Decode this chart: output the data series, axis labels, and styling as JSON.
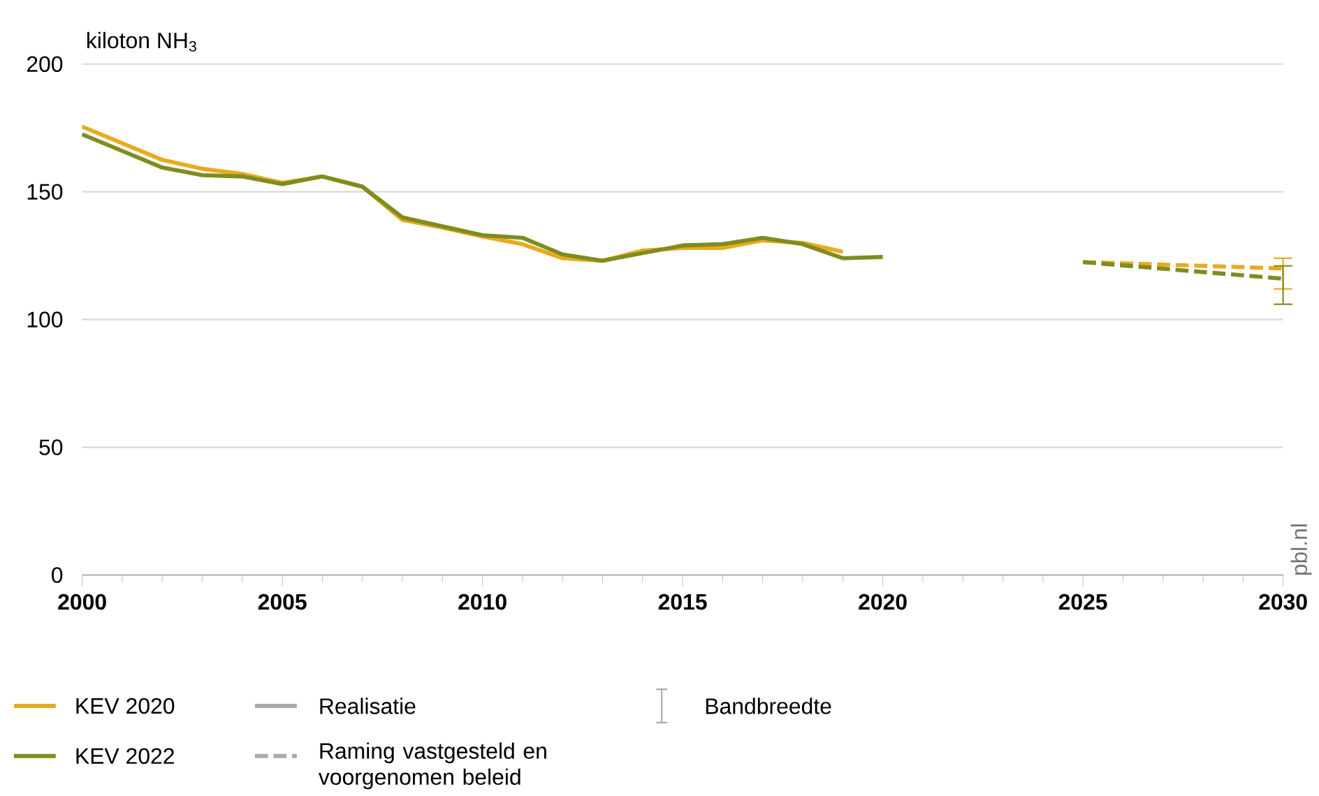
{
  "chart_data": {
    "type": "line",
    "ylabel": "kiloton NH$_{3}$",
    "xlim": [
      2000,
      2030
    ],
    "xticks": [
      2000,
      2005,
      2010,
      2015,
      2020,
      2025,
      2030
    ],
    "ylim": [
      0,
      200
    ],
    "yticks": [
      0,
      50,
      100,
      150,
      200
    ],
    "grid": "y",
    "legend": "bottom left",
    "series": [
      {
        "name": "KEV 2020",
        "color": "#e8aa1e",
        "line_style": "solid",
        "x": [
          2000,
          2001,
          2002,
          2003,
          2004,
          2005,
          2006,
          2007,
          2008,
          2009,
          2010,
          2011,
          2012,
          2013,
          2014,
          2015,
          2016,
          2017,
          2018,
          2019
        ],
        "values": [
          175.5,
          169,
          162.5,
          159,
          157,
          153.5,
          156,
          152,
          139,
          136,
          132.5,
          129.5,
          124,
          123,
          127,
          128,
          128,
          131,
          130,
          126.5
        ]
      },
      {
        "name": "KEV 2022",
        "color": "#7f8c1f",
        "line_style": "solid",
        "x": [
          2000,
          2001,
          2002,
          2003,
          2004,
          2005,
          2006,
          2007,
          2008,
          2009,
          2010,
          2011,
          2012,
          2013,
          2014,
          2015,
          2016,
          2017,
          2018,
          2019,
          2020
        ],
        "values": [
          172.5,
          166,
          159.5,
          156.5,
          156,
          153,
          156,
          152,
          140,
          136.5,
          133,
          132,
          125.5,
          123,
          126,
          129,
          129.5,
          132,
          129.5,
          124,
          124.5
        ]
      },
      {
        "color": "#e8aa1e",
        "line_style": "dashed",
        "x": [
          2025,
          2030
        ],
        "values": [
          122.5,
          120
        ],
        "errors": [
          null,
          [
            112,
            124
          ]
        ]
      },
      {
        "color": "#7f8c1f",
        "line_style": "dashed",
        "x": [
          2025,
          2030
        ],
        "values": [
          122.5,
          116
        ],
        "errors": [
          null,
          [
            106,
            121
          ]
        ]
      }
    ],
    "annotations": [
      "Realisatie",
      "Raming vastgesteld en voorgenomen beleid",
      "Bandbreedte",
      "pbl.nl"
    ]
  }
}
